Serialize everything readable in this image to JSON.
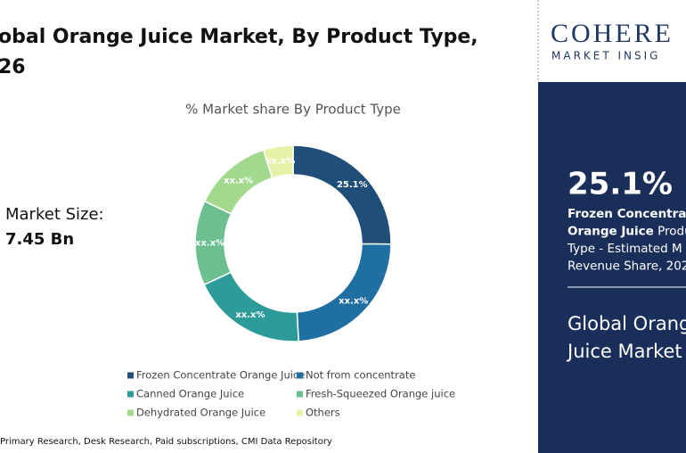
{
  "header": {
    "title_lines": [
      "obal Orange Juice Market, By Product Type,",
      "26"
    ]
  },
  "market_size": {
    "label": "Market Size:",
    "value": "7.45 Bn"
  },
  "source": "Primary Research, Desk Research, Paid subscriptions, CMI Data Repository",
  "chart_data": {
    "type": "donut",
    "title": "% Market share By Product Type",
    "categories": [
      "Frozen Concentrate Orange Juice",
      "Not from concentrate",
      "Canned Orange Juice",
      "Fresh-Squeezed Orange juice",
      "Dehydrated Orange Juice",
      "Others"
    ],
    "values": [
      25.1,
      24,
      19,
      14,
      13,
      4.9
    ],
    "value_labels": [
      "25.1%",
      "xx.x%",
      "xx.x%",
      "xx.x%",
      "xx.x%",
      "xx.x%"
    ],
    "colors": [
      "#1f4e79",
      "#1f6fa3",
      "#2e9b9b",
      "#6cbf8f",
      "#a3d98f",
      "#e6f2a8"
    ]
  },
  "sidebar": {
    "logo": "COHERE",
    "logo_sub": "MARKET INSIG",
    "highlight": "25.1%",
    "description": [
      {
        "bold": "Frozen Concentrate"
      },
      {
        "bold": "Orange Juice",
        "normal": " Produc"
      },
      {
        "normal": "Type - Estimated M"
      },
      {
        "normal": "Revenue Share, 202"
      }
    ],
    "footer_lines": [
      "Global Orang",
      "Juice Market"
    ]
  }
}
